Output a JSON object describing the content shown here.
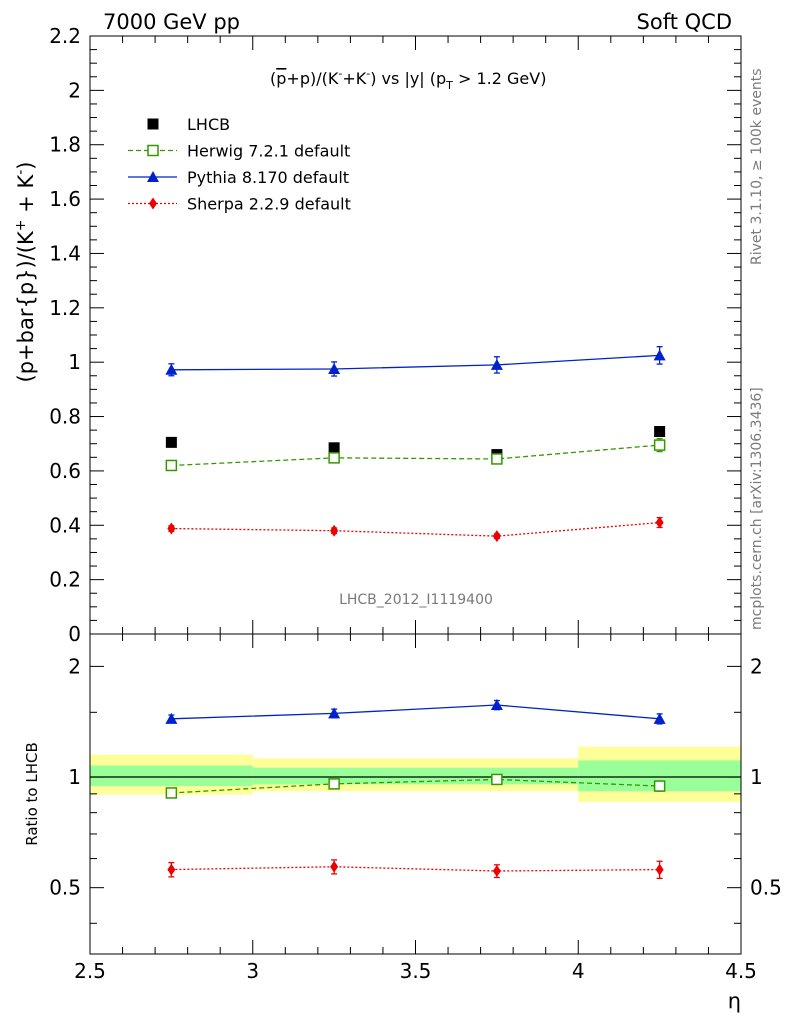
{
  "header": {
    "left": "7000 GeV pp",
    "right": "Soft QCD"
  },
  "side_text": {
    "rivet": "Rivet 3.1.10, ≥ 100k events",
    "mcplots": "mcplots.cern.ch [arXiv:1306.3436]"
  },
  "watermark": "LHCB_2012_I1119400",
  "chart_data": [
    {
      "type": "scatter",
      "panel": "main",
      "title_parts": {
        "open": "(",
        "pbar": "p",
        "mid1": "+p)/(K",
        "sup1": "-",
        "mid2": "+K",
        "sup2": "-",
        "mid3": ") vs |y| (p",
        "sub": "T",
        "end": " > 1.2 GeV)"
      },
      "ylabel_parts": {
        "base": "(p+bar{p})/(K",
        "sup1": "+",
        "mid": " + K",
        "sup2": "-",
        "end": ")"
      },
      "xlim": [
        2.5,
        4.5
      ],
      "ylim": [
        0,
        2.2
      ],
      "yticks": [
        "0",
        "0.2",
        "0.4",
        "0.6",
        "0.8",
        "1",
        "1.2",
        "1.4",
        "1.6",
        "1.8",
        "2",
        "2.2"
      ],
      "x": [
        2.75,
        3.25,
        3.75,
        4.25
      ],
      "legend_position": "top-left",
      "series": [
        {
          "name": "LHCB",
          "values": [
            0.705,
            0.685,
            0.66,
            0.745
          ],
          "color": "#000000",
          "marker": "square",
          "line": "none"
        },
        {
          "name": "Herwig 7.2.1 default",
          "values": [
            0.62,
            0.648,
            0.644,
            0.695
          ],
          "errors": [
            0.008,
            0.012,
            0.012,
            0.024
          ],
          "color": "#339900",
          "marker": "open-square",
          "line": "dashed"
        },
        {
          "name": "Pythia 8.170 default",
          "values": [
            0.972,
            0.975,
            0.99,
            1.025
          ],
          "errors": [
            0.022,
            0.026,
            0.03,
            0.032
          ],
          "color": "#0022cc",
          "marker": "triangle",
          "line": "solid"
        },
        {
          "name": "Sherpa 2.2.9 default",
          "values": [
            0.388,
            0.38,
            0.36,
            0.41
          ],
          "errors": [
            0.01,
            0.01,
            0.008,
            0.018
          ],
          "color": "#ee0000",
          "marker": "diamond",
          "line": "dotted"
        }
      ]
    },
    {
      "type": "scatter",
      "panel": "ratio",
      "ylabel": "Ratio to LHCB",
      "xlabel": "η",
      "xlim": [
        2.5,
        4.5
      ],
      "ylim": [
        0.33,
        2.45
      ],
      "ylog": true,
      "yticks": [
        "0.5",
        "1",
        "2"
      ],
      "xticks": [
        "2.5",
        "3",
        "3.5",
        "4",
        "4.5"
      ],
      "x": [
        2.75,
        3.25,
        3.75,
        4.25
      ],
      "bands": [
        {
          "x_range": [
            2.5,
            3.0
          ],
          "inner": [
            0.945,
            1.075
          ],
          "outer": [
            0.895,
            1.15
          ]
        },
        {
          "x_range": [
            3.0,
            3.5
          ],
          "inner": [
            0.955,
            1.06
          ],
          "outer": [
            0.915,
            1.125
          ]
        },
        {
          "x_range": [
            3.5,
            4.0
          ],
          "inner": [
            0.955,
            1.06
          ],
          "outer": [
            0.915,
            1.125
          ]
        },
        {
          "x_range": [
            4.0,
            4.5
          ],
          "inner": [
            0.915,
            1.11
          ],
          "outer": [
            0.855,
            1.21
          ]
        }
      ],
      "series": [
        {
          "name": "Herwig 7.2.1 default",
          "values": [
            0.905,
            0.958,
            0.985,
            0.945
          ],
          "errors": [
            0.01,
            0.015,
            0.016,
            0.03
          ],
          "color": "#339900",
          "marker": "open-square",
          "line": "dashed"
        },
        {
          "name": "Pythia 8.170 default",
          "values": [
            1.44,
            1.49,
            1.57,
            1.44
          ],
          "errors": [
            0.035,
            0.04,
            0.045,
            0.045
          ],
          "color": "#0022cc",
          "marker": "triangle",
          "line": "solid"
        },
        {
          "name": "Sherpa 2.2.9 default",
          "values": [
            0.56,
            0.57,
            0.555,
            0.56
          ],
          "errors": [
            0.025,
            0.025,
            0.022,
            0.03
          ],
          "color": "#ee0000",
          "marker": "diamond",
          "line": "dotted"
        }
      ]
    }
  ]
}
